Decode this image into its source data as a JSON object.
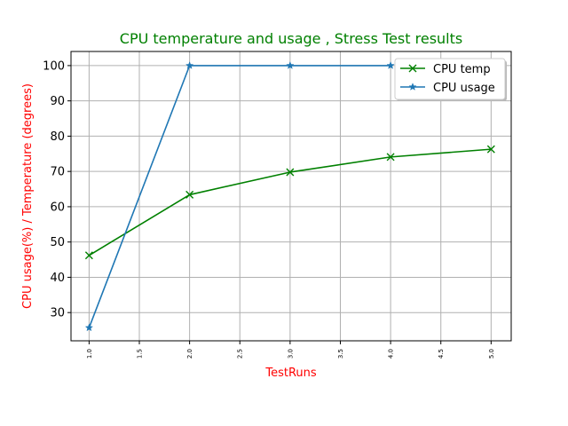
{
  "chart_data": {
    "type": "line",
    "title": "CPU temperature and usage , Stress Test results",
    "xlabel": "TestRuns",
    "ylabel": "CPU usage(%) / Temperature (degrees)",
    "x": [
      1.0,
      2.0,
      3.0,
      4.0,
      5.0
    ],
    "xlim": [
      0.82,
      5.2
    ],
    "ylim": [
      22,
      104
    ],
    "xticks": [
      1.0,
      1.5,
      2.0,
      2.5,
      3.0,
      3.5,
      4.0,
      4.5,
      5.0
    ],
    "xtick_labels": [
      "1.0",
      "1.5",
      "2.0",
      "2.5",
      "3.0",
      "3.5",
      "4.0",
      "4.5",
      "5.0"
    ],
    "yticks": [
      30,
      40,
      50,
      60,
      70,
      80,
      90,
      100
    ],
    "ytick_labels": [
      "30",
      "40",
      "50",
      "60",
      "70",
      "80",
      "90",
      "100"
    ],
    "grid": true,
    "legend_position": "top-right",
    "series": [
      {
        "name": "CPU temp",
        "x": [
          1.0,
          2.0,
          3.0,
          4.0,
          5.0
        ],
        "values": [
          46.2,
          63.4,
          69.8,
          74.1,
          76.3
        ],
        "color": "#008000",
        "marker": "x"
      },
      {
        "name": "CPU usage",
        "x": [
          1.0,
          2.0,
          3.0,
          4.0
        ],
        "values": [
          25.7,
          100,
          100,
          100
        ],
        "color": "#1f77b4",
        "marker": "star"
      }
    ],
    "colors": {
      "title": "#008000",
      "axis_labels": "#ff0000",
      "grid": "#b0b0b0"
    }
  }
}
